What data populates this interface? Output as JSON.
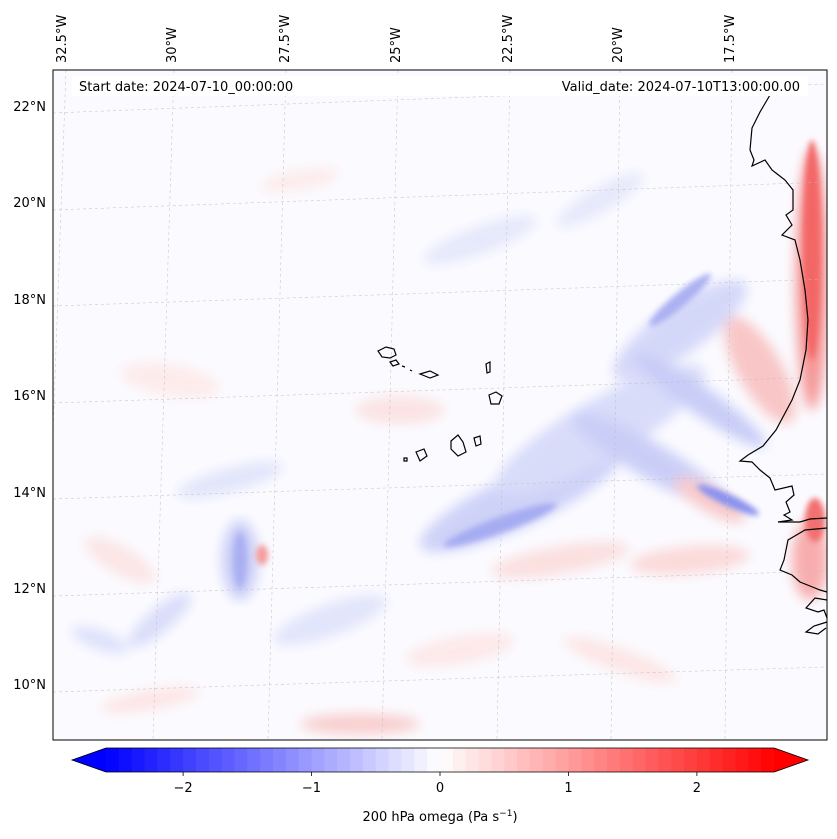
{
  "figure": {
    "start_date_label": "Start date: 2024-07-10_00:00:00",
    "valid_date_label": "Valid_date: 2024-07-10T13:00:00.00"
  },
  "map": {
    "longitude_labels": [
      "32.5°W",
      "30°W",
      "27.5°W",
      "25°W",
      "22.5°W",
      "20°W",
      "17.5°W"
    ],
    "latitude_labels": [
      "22°N",
      "20°N",
      "18°N",
      "16°N",
      "14°N",
      "12°N",
      "10°N"
    ],
    "features": [
      "Cape Verde islands",
      "West African coastline"
    ]
  },
  "colorbar": {
    "label_prefix": "200 hPa omega (Pa s",
    "label_exponent": "−1",
    "label_suffix": ")",
    "tick_labels": [
      "−2",
      "−1",
      "0",
      "1",
      "2"
    ],
    "tick_values": [
      -2,
      -1,
      0,
      1,
      2
    ],
    "range": [
      -2.6,
      2.6
    ],
    "colormap": "bwr",
    "color_min": "#0000ff",
    "color_mid": "#ffffff",
    "color_max": "#ff0000"
  }
}
